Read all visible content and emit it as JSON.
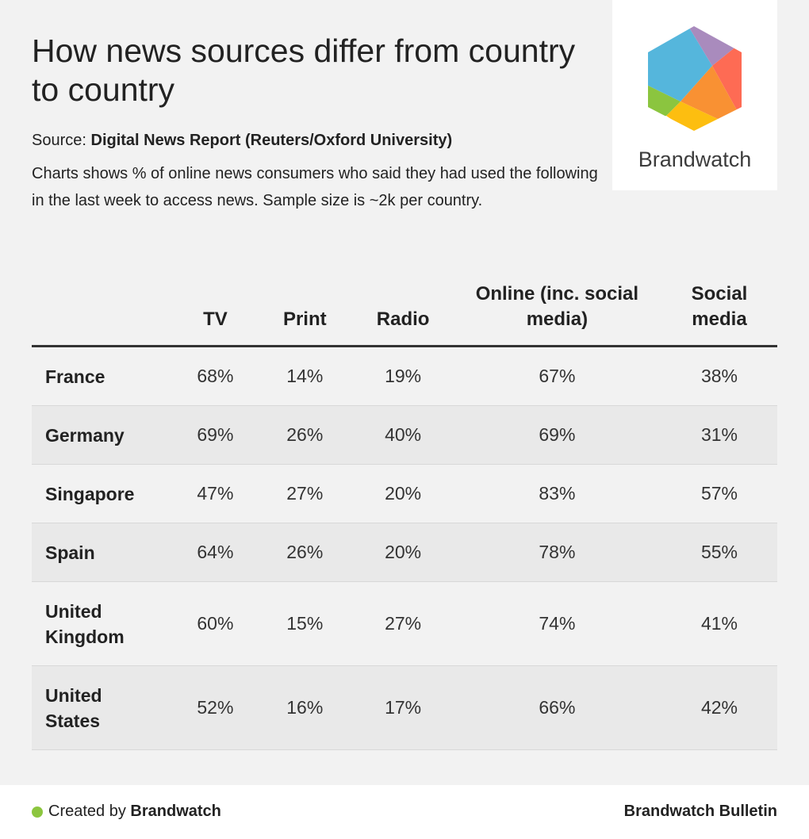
{
  "header": {
    "title": "How news sources differ from country to country",
    "source_label": "Source:",
    "source_name": "Digital News Report (Reuters/Oxford University)",
    "description": "Charts shows % of online news consumers who said they had used the following in the last week to access news. Sample size is ~2k per country."
  },
  "logo": {
    "text": "Brandwatch",
    "colors": [
      "#55b6dc",
      "#a98bbd",
      "#fe6b54",
      "#f99133",
      "#fdbe10",
      "#8bc53f"
    ]
  },
  "chart_data": {
    "type": "table",
    "columns": [
      "",
      "TV",
      "Print",
      "Radio",
      "Online (inc. social media)",
      "Social media"
    ],
    "rows": [
      {
        "country": "France",
        "values": [
          "68%",
          "14%",
          "19%",
          "67%",
          "38%"
        ]
      },
      {
        "country": "Germany",
        "values": [
          "69%",
          "26%",
          "40%",
          "69%",
          "31%"
        ]
      },
      {
        "country": "Singapore",
        "values": [
          "47%",
          "27%",
          "20%",
          "83%",
          "57%"
        ]
      },
      {
        "country": "Spain",
        "values": [
          "64%",
          "26%",
          "20%",
          "78%",
          "55%"
        ]
      },
      {
        "country": "United Kingdom",
        "values": [
          "60%",
          "15%",
          "27%",
          "74%",
          "41%"
        ]
      },
      {
        "country": "United States",
        "values": [
          "52%",
          "16%",
          "17%",
          "66%",
          "42%"
        ]
      }
    ]
  },
  "footer": {
    "created_by": "Created by",
    "brand": "Brandwatch",
    "bulletin": "Brandwatch Bulletin",
    "dot_color": "#8cc63f"
  }
}
